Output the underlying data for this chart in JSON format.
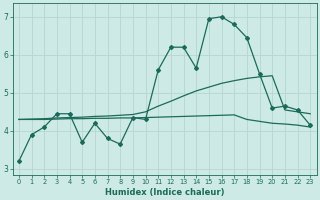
{
  "xlabel": "Humidex (Indice chaleur)",
  "bg_color": "#ceeae6",
  "grid_color": "#b8d8d4",
  "line_color": "#1a6b5a",
  "xlim": [
    -0.5,
    23.5
  ],
  "ylim": [
    2.85,
    7.35
  ],
  "yticks": [
    3,
    4,
    5,
    6,
    7
  ],
  "xticks": [
    0,
    1,
    2,
    3,
    4,
    5,
    6,
    7,
    8,
    9,
    10,
    11,
    12,
    13,
    14,
    15,
    16,
    17,
    18,
    19,
    20,
    21,
    22,
    23
  ],
  "line1_x": [
    0,
    1,
    2,
    3,
    4,
    5,
    6,
    7,
    8,
    9,
    10,
    11,
    12,
    13,
    14,
    15,
    16,
    17,
    18,
    19,
    20,
    21,
    22,
    23
  ],
  "line1_y": [
    3.2,
    3.9,
    4.1,
    4.45,
    4.45,
    3.7,
    4.2,
    3.8,
    3.65,
    4.35,
    4.3,
    5.6,
    6.2,
    6.2,
    5.65,
    6.95,
    7.0,
    6.8,
    6.45,
    5.5,
    4.6,
    4.65,
    4.55,
    4.15
  ],
  "line2_x": [
    0,
    1,
    2,
    3,
    4,
    5,
    6,
    7,
    8,
    9,
    10,
    11,
    12,
    13,
    14,
    15,
    16,
    17,
    18,
    19,
    20,
    21,
    22,
    23
  ],
  "line2_y": [
    4.3,
    4.31,
    4.32,
    4.34,
    4.35,
    4.36,
    4.38,
    4.39,
    4.41,
    4.43,
    4.5,
    4.65,
    4.78,
    4.92,
    5.05,
    5.15,
    5.25,
    5.32,
    5.38,
    5.42,
    5.45,
    4.55,
    4.5,
    4.45
  ],
  "line3_x": [
    0,
    1,
    2,
    3,
    4,
    5,
    6,
    7,
    8,
    9,
    10,
    11,
    12,
    13,
    14,
    15,
    16,
    17,
    18,
    19,
    20,
    21,
    22,
    23
  ],
  "line3_y": [
    4.3,
    4.3,
    4.3,
    4.31,
    4.32,
    4.32,
    4.33,
    4.33,
    4.34,
    4.34,
    4.35,
    4.36,
    4.37,
    4.38,
    4.39,
    4.4,
    4.41,
    4.42,
    4.3,
    4.25,
    4.2,
    4.18,
    4.15,
    4.1
  ]
}
